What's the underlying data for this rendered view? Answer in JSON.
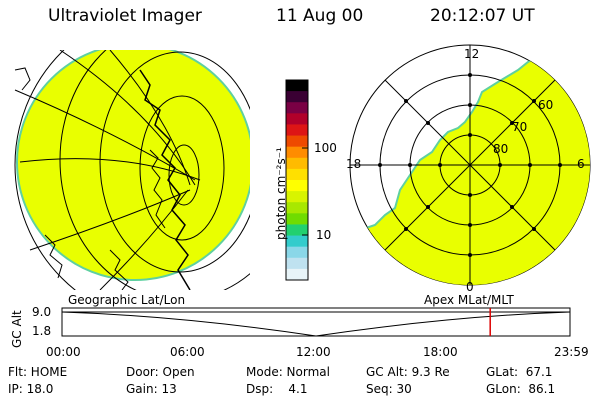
{
  "header": {
    "instrument": "Ultraviolet Imager",
    "date": "11 Aug 00",
    "time": "20:12:07 UT"
  },
  "colorbar": {
    "unit_label": "photon cm⁻²s⁻¹",
    "ticks": [
      "100",
      "10"
    ],
    "colors": [
      "#000000",
      "#3a0033",
      "#7a0044",
      "#b1002a",
      "#dd1515",
      "#ee4a00",
      "#ff8c00",
      "#ffbb00",
      "#ffe000",
      "#ffff00",
      "#d8f400",
      "#a8e800",
      "#70dc00",
      "#22d070",
      "#33cccc",
      "#8ad7e8",
      "#bfe2f0",
      "#e8f4f8"
    ]
  },
  "polar_plot": {
    "mlt_labels": [
      "12",
      "18",
      "6",
      "0"
    ],
    "lat_labels": [
      "60",
      "70",
      "80"
    ],
    "fill_color": "#e9ff00"
  },
  "globe_plot": {
    "fill_color": "#e9ff00"
  },
  "timeline": {
    "left_title": "Geographic Lat/Lon",
    "right_title": "Apex MLat/MLT",
    "axis_label": "GC Alt",
    "y_ticks": [
      "9.0",
      "1.8"
    ],
    "x_ticks": [
      "00:00",
      "06:00",
      "12:00",
      "18:00",
      "23:59"
    ],
    "current_time_fraction": 0.843,
    "marker_color": "#dd0000"
  },
  "status": {
    "flt": "Flt: HOME",
    "ip": "IP: 18.0",
    "door": "Door: Open",
    "gain": "Gain: 13",
    "mode": "Mode: Normal",
    "dsp": "Dsp:    4.1",
    "gc_alt": "GC Alt: 9.3 Re",
    "seq": "Seq: 30",
    "glat": "GLat:  67.1",
    "glon": "GLon:  86.1"
  }
}
